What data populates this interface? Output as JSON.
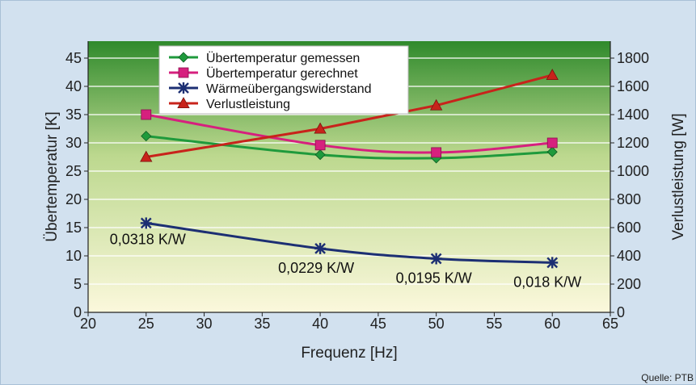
{
  "chart_data": {
    "type": "line",
    "xlabel": "Frequenz [Hz]",
    "ylabel_left": "Übertemperatur [K]",
    "ylabel_right": "Verlustleistung [W]",
    "xlim": [
      20,
      65
    ],
    "ylim_left": [
      0,
      48
    ],
    "ylim_right": [
      0,
      1920
    ],
    "x_ticks": [
      20,
      25,
      30,
      35,
      40,
      45,
      50,
      55,
      60,
      65
    ],
    "y_left_ticks": [
      0,
      5,
      10,
      15,
      20,
      25,
      30,
      35,
      40,
      45
    ],
    "y_right_ticks": [
      0,
      200,
      400,
      600,
      800,
      1000,
      1200,
      1400,
      1600,
      1800
    ],
    "grid": true,
    "legend_position": "top-left",
    "series": [
      {
        "name": "Übertemperatur gemessen",
        "axis": "left",
        "color": "#1f9a3c",
        "marker": "diamond",
        "x": [
          25,
          40,
          50,
          60
        ],
        "values": [
          31.2,
          27.9,
          27.3,
          28.4
        ]
      },
      {
        "name": "Übertemperatur gerechnet",
        "axis": "left",
        "color": "#d6207e",
        "marker": "square",
        "x": [
          25,
          40,
          50,
          60
        ],
        "values": [
          35,
          29.6,
          28.3,
          30
        ]
      },
      {
        "name": "Wärmeübergangswiderstand",
        "axis": "left",
        "color": "#1c2f73",
        "marker": "star",
        "x": [
          25,
          40,
          50,
          60
        ],
        "values": [
          15.8,
          11.3,
          9.5,
          8.8
        ],
        "data_labels": [
          "0,0318 K/W",
          "0,0229 K/W",
          "0,0195 K/W",
          "0,018 K/W"
        ]
      },
      {
        "name": "Verlustleistung",
        "axis": "right",
        "color": "#c8231b",
        "marker": "triangle",
        "x": [
          25,
          40,
          50,
          60
        ],
        "values": [
          1100,
          1300,
          1465,
          1680
        ]
      }
    ],
    "source": "Quelle: PTB"
  },
  "colors": {
    "frame_bg": "#d2e1ef",
    "plot_top": "#2f8a2c",
    "plot_mid": "#bcd88e",
    "plot_bottom": "#fbf8dc"
  }
}
